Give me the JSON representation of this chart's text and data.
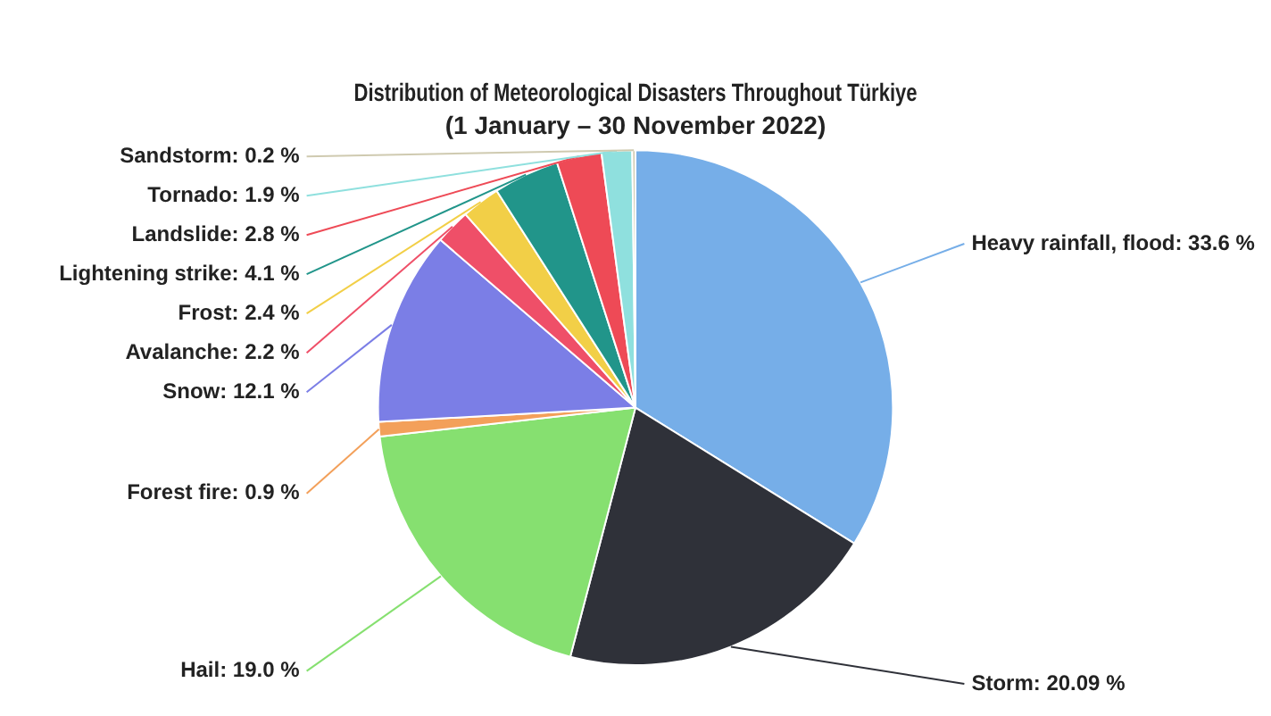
{
  "chart_data": {
    "type": "pie",
    "title": "Distribution of Meteorological Disasters Throughout Türkiye",
    "subtitle": "(1 January – 30 November 2022)",
    "categories": [
      "Heavy rainfall, flood",
      "Storm",
      "Hail",
      "Forest fire",
      "Snow",
      "Avalanche",
      "Frost",
      "Lightening strike",
      "Landslide",
      "Tornado",
      "Sandstorm"
    ],
    "values": [
      33.6,
      20.09,
      19.0,
      0.9,
      12.1,
      2.2,
      2.4,
      4.1,
      2.8,
      1.9,
      0.2
    ],
    "value_labels": [
      "33.6 %",
      "20.09 %",
      "19.0 %",
      "0.9 %",
      "12.1 %",
      "2.2 %",
      "2.4 %",
      "4.1 %",
      "2.8 %",
      "1.9 %",
      "0.2 %"
    ],
    "colors": [
      "#76aee8",
      "#2f3139",
      "#86e070",
      "#f3a05a",
      "#7b7ee6",
      "#ef4f68",
      "#f2cf47",
      "#21958a",
      "#ee4a56",
      "#8fe0de",
      "#cfcab0"
    ],
    "legend": false
  }
}
